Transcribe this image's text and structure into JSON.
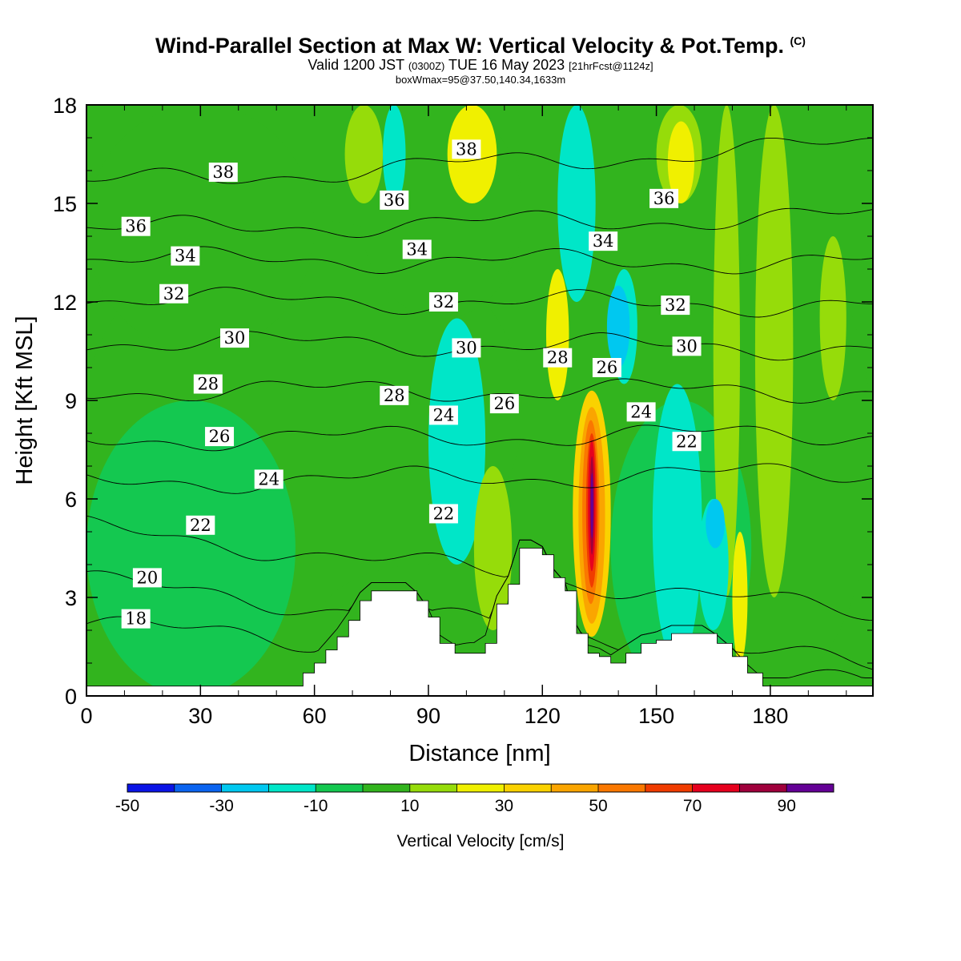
{
  "header": {
    "title": "Wind-Parallel Section at Max W: Vertical Velocity & Pot.Temp.",
    "title_mark": "(C)",
    "valid_prefix": "Valid 1200 JST",
    "valid_z": "(0300Z)",
    "valid_date": "TUE 16 May 2023",
    "valid_fcst": "[21hrFcst@1124z]",
    "boxline": "boxWmax=95@37.50,140.34,1633m"
  },
  "chart_data": {
    "type": "heatmap",
    "xlabel": "Distance [nm]",
    "ylabel": "Height [Kft MSL]",
    "xlim": [
      0,
      207
    ],
    "ylim": [
      0,
      18
    ],
    "x_ticks": [
      0,
      30,
      60,
      90,
      120,
      150,
      180
    ],
    "y_ticks": [
      0,
      3,
      6,
      9,
      12,
      15,
      18
    ],
    "grid": false,
    "colorbar": {
      "title": "Vertical Velocity [cm/s]",
      "bounds": [
        -50,
        -40,
        -30,
        -20,
        -10,
        0,
        10,
        20,
        30,
        40,
        50,
        60,
        70,
        80,
        90,
        100
      ],
      "colors": [
        "#0a14e6",
        "#0a64f0",
        "#00c8f0",
        "#00e6c8",
        "#14c850",
        "#32b41e",
        "#96dc0a",
        "#f0f000",
        "#fad200",
        "#faa500",
        "#fa7800",
        "#f03c00",
        "#e6001e",
        "#a0003c",
        "#640096"
      ],
      "labels": [
        -50,
        -30,
        -10,
        10,
        30,
        50,
        70,
        90
      ]
    },
    "background_value": 5,
    "velocity_regions": [
      {
        "x": [
          0,
          115
        ],
        "z": [
          3,
          14.5
        ],
        "w": 7
      },
      {
        "x": [
          0,
          60
        ],
        "z": [
          10.5,
          18
        ],
        "w": 7
      },
      {
        "x": [
          72,
          115
        ],
        "z": [
          11.5,
          18
        ],
        "w": 7
      },
      {
        "x": [
          160,
          207
        ],
        "z": [
          0.5,
          14
        ],
        "w": 7
      },
      {
        "x": [
          0,
          55
        ],
        "z": [
          0,
          9
        ],
        "w": -5
      },
      {
        "x": [
          60,
          118
        ],
        "z": [
          0,
          4
        ],
        "w": 7
      },
      {
        "x": [
          138,
          175
        ],
        "z": [
          0,
          9
        ],
        "w": -5
      },
      {
        "x": [
          90,
          105
        ],
        "z": [
          4,
          11.5
        ],
        "w": -15
      },
      {
        "x": [
          102,
          112
        ],
        "z": [
          2,
          7
        ],
        "w": 15
      },
      {
        "x": [
          95,
          108
        ],
        "z": [
          15,
          18
        ],
        "w": 25
      },
      {
        "x": [
          68,
          78
        ],
        "z": [
          15,
          18
        ],
        "w": 15
      },
      {
        "x": [
          78,
          84
        ],
        "z": [
          15,
          18
        ],
        "w": -15
      },
      {
        "x": [
          124,
          134
        ],
        "z": [
          12,
          18
        ],
        "w": -15
      },
      {
        "x": [
          150,
          162
        ],
        "z": [
          15,
          18
        ],
        "w": 15
      },
      {
        "x": [
          153,
          160
        ],
        "z": [
          15,
          17.5
        ],
        "w": 25
      },
      {
        "x": [
          176,
          186
        ],
        "z": [
          3,
          18
        ],
        "w": 15
      },
      {
        "x": [
          165,
          172
        ],
        "z": [
          3,
          18
        ],
        "w": 15
      },
      {
        "x": [
          193,
          200
        ],
        "z": [
          9,
          14
        ],
        "w": 15
      },
      {
        "x": [
          121,
          127
        ],
        "z": [
          9,
          13
        ],
        "w": 25
      },
      {
        "x": [
          138,
          145
        ],
        "z": [
          9.5,
          13
        ],
        "w": -15
      },
      {
        "x": [
          137,
          143
        ],
        "z": [
          10,
          12.5
        ],
        "w": -25
      },
      {
        "x": [
          161,
          169
        ],
        "z": [
          2,
          6
        ],
        "w": -15
      },
      {
        "x": [
          163,
          168
        ],
        "z": [
          4.5,
          6
        ],
        "w": -25
      },
      {
        "x": [
          170,
          174
        ],
        "z": [
          1,
          5
        ],
        "w": 25
      },
      {
        "x": [
          149,
          162
        ],
        "z": [
          1,
          9.5
        ],
        "w": -15
      },
      {
        "x": [
          128,
          138
        ],
        "z": [
          1.8,
          9.3
        ],
        "w": 35
      },
      {
        "x": [
          129.5,
          136.5
        ],
        "z": [
          2.2,
          8.8
        ],
        "w": 45
      },
      {
        "x": [
          130.5,
          135
        ],
        "z": [
          2.8,
          8.4
        ],
        "w": 55
      },
      {
        "x": [
          131.5,
          134.5
        ],
        "z": [
          3.3,
          8
        ],
        "w": 65
      },
      {
        "x": [
          132,
          134
        ],
        "z": [
          3.8,
          7.8
        ],
        "w": 75
      },
      {
        "x": [
          132.5,
          133.6
        ],
        "z": [
          4.3,
          7.3
        ],
        "w": 85
      },
      {
        "x": [
          132.7,
          133.4
        ],
        "z": [
          4.8,
          6.8
        ],
        "w": 95
      }
    ],
    "terrain": [
      [
        0,
        0.3
      ],
      [
        55,
        0.3
      ],
      [
        57,
        0.7
      ],
      [
        60,
        1.0
      ],
      [
        63,
        1.4
      ],
      [
        66,
        1.8
      ],
      [
        69,
        2.3
      ],
      [
        72,
        2.9
      ],
      [
        75,
        3.2
      ],
      [
        78,
        3.2
      ],
      [
        81,
        3.2
      ],
      [
        84,
        3.2
      ],
      [
        87,
        2.9
      ],
      [
        90,
        2.4
      ],
      [
        93,
        1.6
      ],
      [
        97,
        1.3
      ],
      [
        101,
        1.3
      ],
      [
        105,
        1.6
      ],
      [
        108,
        2.8
      ],
      [
        111,
        3.4
      ],
      [
        114,
        4.5
      ],
      [
        117,
        4.5
      ],
      [
        120,
        4.3
      ],
      [
        123,
        3.6
      ],
      [
        126,
        3.2
      ],
      [
        129,
        1.9
      ],
      [
        132,
        1.3
      ],
      [
        135,
        1.2
      ],
      [
        138,
        1.0
      ],
      [
        142,
        1.3
      ],
      [
        146,
        1.6
      ],
      [
        150,
        1.7
      ],
      [
        154,
        1.9
      ],
      [
        158,
        1.9
      ],
      [
        162,
        1.9
      ],
      [
        166,
        1.6
      ],
      [
        170,
        1.2
      ],
      [
        174,
        0.7
      ],
      [
        178,
        0.3
      ],
      [
        207,
        0.3
      ]
    ],
    "theta_contours": [
      {
        "theta": 18,
        "z_left": 2.2,
        "z_right": 0.3,
        "label": "18",
        "label_x": 13.0
      },
      {
        "theta": 20,
        "z_left": 3.5,
        "z_right": 0.9,
        "label": "20",
        "label_x": 16.0
      },
      {
        "theta": 22,
        "z_left": 5.1,
        "z_right": 2.5,
        "label": "22",
        "label_x": 30.0
      },
      {
        "theta": 24,
        "z_left": 6.5,
        "z_right": 6.8,
        "label": "24",
        "label_x": 48.0
      },
      {
        "theta": 26,
        "z_left": 7.8,
        "z_right": 8.0,
        "label": "26",
        "label_x": 35.0
      },
      {
        "theta": 28,
        "z_left": 9.3,
        "z_right": 9.3,
        "label": "28",
        "label_x": 32.0
      },
      {
        "theta": 30,
        "z_left": 10.8,
        "z_right": 10.6,
        "label": "30",
        "label_x": 39.0
      },
      {
        "theta": 32,
        "z_left": 12.1,
        "z_right": 11.9,
        "label": "32",
        "label_x": 23.0
      },
      {
        "theta": 34,
        "z_left": 13.3,
        "z_right": 13.2,
        "label": "34",
        "label_x": 26.0
      },
      {
        "theta": 36,
        "z_left": 14.2,
        "z_right": 14.6,
        "label": "36",
        "label_x": 13.0
      },
      {
        "theta": 38,
        "z_left": 15.6,
        "z_right": 16.8,
        "label": "38",
        "label_x": 36.0
      }
    ],
    "contour_labels": [
      {
        "text": "38",
        "x": 36,
        "z": 15.95
      },
      {
        "text": "36",
        "x": 13,
        "z": 14.3
      },
      {
        "text": "34",
        "x": 26,
        "z": 13.4
      },
      {
        "text": "32",
        "x": 23,
        "z": 12.25
      },
      {
        "text": "30",
        "x": 39,
        "z": 10.9
      },
      {
        "text": "28",
        "x": 32,
        "z": 9.5
      },
      {
        "text": "26",
        "x": 35,
        "z": 7.9
      },
      {
        "text": "24",
        "x": 48,
        "z": 6.6
      },
      {
        "text": "22",
        "x": 30,
        "z": 5.2
      },
      {
        "text": "20",
        "x": 16,
        "z": 3.6
      },
      {
        "text": "18",
        "x": 13,
        "z": 2.35
      },
      {
        "text": "38",
        "x": 100,
        "z": 16.65
      },
      {
        "text": "36",
        "x": 81,
        "z": 15.1
      },
      {
        "text": "34",
        "x": 87,
        "z": 13.6
      },
      {
        "text": "32",
        "x": 94,
        "z": 12.0
      },
      {
        "text": "30",
        "x": 100,
        "z": 10.6
      },
      {
        "text": "28",
        "x": 81,
        "z": 9.15
      },
      {
        "text": "24",
        "x": 94,
        "z": 8.55
      },
      {
        "text": "26",
        "x": 110,
        "z": 8.9
      },
      {
        "text": "22",
        "x": 94,
        "z": 5.55
      },
      {
        "text": "28",
        "x": 124,
        "z": 10.3
      },
      {
        "text": "26",
        "x": 137,
        "z": 10.0
      },
      {
        "text": "34",
        "x": 136,
        "z": 13.85
      },
      {
        "text": "36",
        "x": 152,
        "z": 15.15
      },
      {
        "text": "32",
        "x": 155,
        "z": 11.9
      },
      {
        "text": "30",
        "x": 158,
        "z": 10.65
      },
      {
        "text": "24",
        "x": 146,
        "z": 8.65
      },
      {
        "text": "22",
        "x": 158,
        "z": 7.75
      }
    ]
  }
}
